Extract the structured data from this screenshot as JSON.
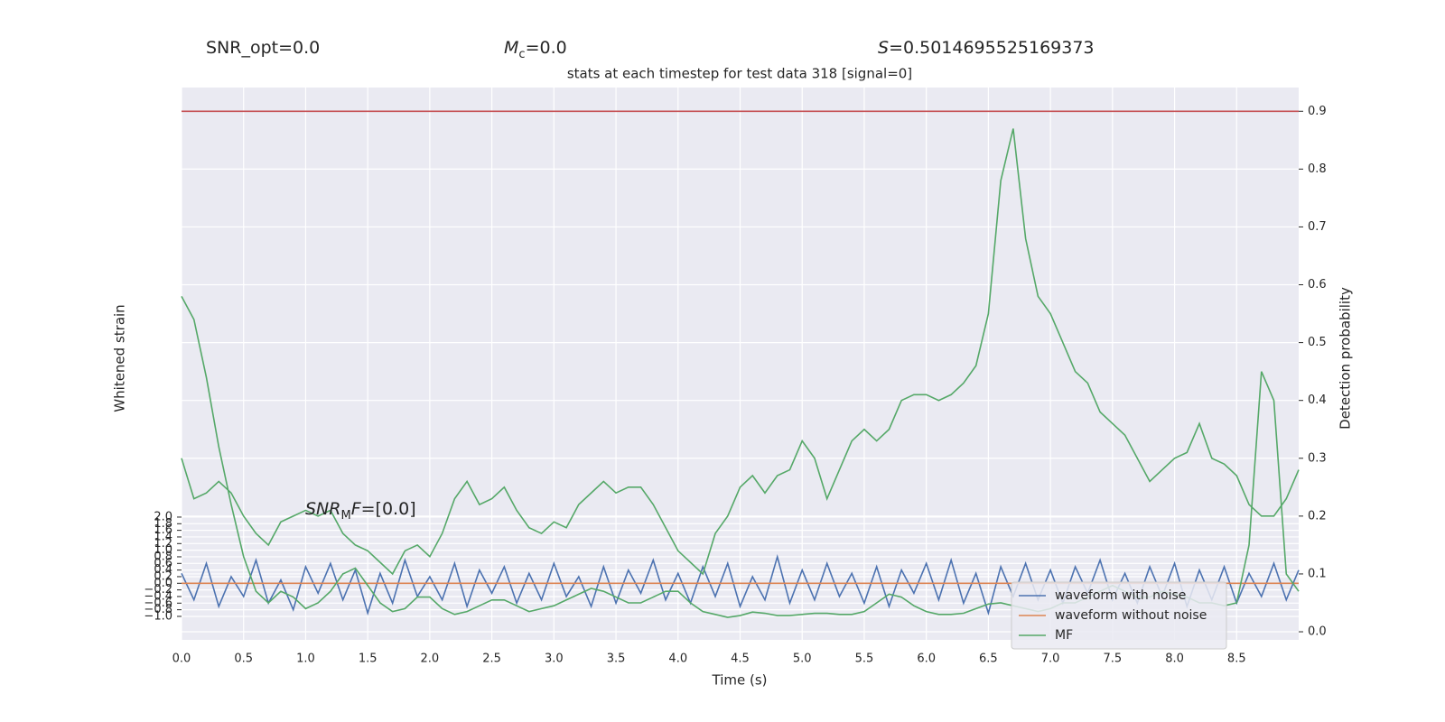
{
  "chart_data": {
    "type": "line",
    "title": "stats at each timestep for test data 318 [signal=0]",
    "stats": [
      {
        "text": "SNR_opt=0.0"
      },
      {
        "italic": "M",
        "sub": "c",
        "text": "=0.0"
      },
      {
        "italic": "S",
        "text": "=0.5014695525169373"
      }
    ],
    "annotation": {
      "italic": "SNR",
      "sub": "M",
      "italic2": "F",
      "text": "=[0.0]"
    },
    "xlabel": "Time (s)",
    "ylabel": "Whitened strain",
    "y2label": "Detection probability",
    "xlim": [
      0,
      9.0
    ],
    "xticks": [
      {
        "value": 0,
        "label": "0.0"
      },
      0.5,
      {
        "value": 1,
        "label": "1.0"
      },
      1.5,
      {
        "value": 2,
        "label": "2.0"
      },
      2.5,
      {
        "value": 3,
        "label": "3.0"
      },
      3.5,
      {
        "value": 4,
        "label": "4.0"
      },
      4.5,
      {
        "value": 5,
        "label": "5.0"
      },
      5.5,
      {
        "value": 6,
        "label": "6.0"
      },
      6.5,
      {
        "value": 7,
        "label": "7.0"
      },
      7.5,
      {
        "value": 8,
        "label": "8.0"
      },
      8.5
    ],
    "ylim": [
      -1.71,
      14.98
    ],
    "yticks": [
      {
        "value": -1,
        "label": "−1.0"
      },
      {
        "value": -0.8,
        "label": "−0.8"
      },
      {
        "value": -0.6,
        "label": "−0.6"
      },
      {
        "value": -0.4,
        "label": "−0.4"
      },
      {
        "value": -0.2,
        "label": "−0.2"
      },
      {
        "value": 0,
        "label": "0.0"
      },
      0.2,
      0.4,
      0.6,
      0.8,
      {
        "value": 1,
        "label": "1.0"
      },
      1.2,
      1.4,
      1.6,
      1.8,
      {
        "value": 2,
        "label": "2.0"
      }
    ],
    "y2lim": [
      -0.014,
      0.941
    ],
    "y2ticks": [
      {
        "value": 0,
        "label": "0.0"
      },
      0.1,
      0.2,
      0.3,
      0.4,
      0.5,
      0.6,
      0.7,
      0.8,
      0.9
    ],
    "grid": true,
    "legend": "lower right",
    "hlines": [
      {
        "value": 0.9,
        "color": "#c44e52",
        "axis": "y2"
      }
    ],
    "x": [
      0,
      0.1,
      0.2,
      0.3,
      0.4,
      0.5,
      0.6,
      0.7,
      0.8,
      0.9,
      1.0,
      1.1,
      1.2,
      1.3,
      1.4,
      1.5,
      1.6,
      1.7,
      1.8,
      1.9,
      2.0,
      2.1,
      2.2,
      2.3,
      2.4,
      2.5,
      2.6,
      2.7,
      2.8,
      2.9,
      3.0,
      3.1,
      3.2,
      3.3,
      3.4,
      3.5,
      3.6,
      3.7,
      3.8,
      3.9,
      4.0,
      4.1,
      4.2,
      4.3,
      4.4,
      4.5,
      4.6,
      4.7,
      4.8,
      4.9,
      5.0,
      5.1,
      5.2,
      5.3,
      5.4,
      5.5,
      5.6,
      5.7,
      5.8,
      5.9,
      6.0,
      6.1,
      6.2,
      6.3,
      6.4,
      6.5,
      6.6,
      6.7,
      6.8,
      6.9,
      7.0,
      7.1,
      7.2,
      7.3,
      7.4,
      7.5,
      7.6,
      7.7,
      7.8,
      7.9,
      8.0,
      8.1,
      8.2,
      8.3,
      8.4,
      8.5,
      8.6,
      8.7,
      8.8,
      8.9,
      9.0
    ],
    "series": [
      {
        "name": "waveform with noise",
        "color": "#4c72b0",
        "axis": "y",
        "values": [
          0.3,
          -0.5,
          0.6,
          -0.7,
          0.2,
          -0.4,
          0.7,
          -0.6,
          0.1,
          -0.8,
          0.5,
          -0.3,
          0.6,
          -0.5,
          0.4,
          -0.9,
          0.3,
          -0.6,
          0.7,
          -0.4,
          0.2,
          -0.5,
          0.6,
          -0.7,
          0.4,
          -0.3,
          0.5,
          -0.6,
          0.3,
          -0.5,
          0.6,
          -0.4,
          0.2,
          -0.7,
          0.5,
          -0.6,
          0.4,
          -0.3,
          0.7,
          -0.5,
          0.3,
          -0.6,
          0.5,
          -0.4,
          0.6,
          -0.7,
          0.2,
          -0.5,
          0.8,
          -0.6,
          0.4,
          -0.5,
          0.6,
          -0.4,
          0.3,
          -0.6,
          0.5,
          -0.7,
          0.4,
          -0.3,
          0.6,
          -0.5,
          0.7,
          -0.6,
          0.3,
          -0.9,
          0.5,
          -0.4,
          0.6,
          -0.5,
          0.4,
          -0.6,
          0.5,
          -0.3,
          0.7,
          -0.5,
          0.3,
          -0.6,
          0.5,
          -0.4,
          0.6,
          -0.7,
          0.4,
          -0.5,
          0.5,
          -0.6,
          0.3,
          -0.4,
          0.6,
          -0.5,
          0.4
        ]
      },
      {
        "name": "waveform without noise",
        "color": "#dd8452",
        "axis": "y",
        "x": [
          0,
          9.0
        ],
        "values": [
          0,
          0
        ]
      },
      {
        "name": "MF",
        "color": "#55a868",
        "axis": "y2",
        "values": [
          0.58,
          0.54,
          0.44,
          0.32,
          0.22,
          0.13,
          0.07,
          0.05,
          0.07,
          0.06,
          0.04,
          0.05,
          0.07,
          0.1,
          0.11,
          0.08,
          0.05,
          0.035,
          0.04,
          0.06,
          0.06,
          0.04,
          0.03,
          0.035,
          0.045,
          0.055,
          0.055,
          0.045,
          0.035,
          0.04,
          0.045,
          0.055,
          0.065,
          0.075,
          0.07,
          0.06,
          0.05,
          0.05,
          0.06,
          0.07,
          0.07,
          0.05,
          0.035,
          0.03,
          0.025,
          0.028,
          0.034,
          0.032,
          0.028,
          0.028,
          0.03,
          0.032,
          0.032,
          0.03,
          0.03,
          0.035,
          0.05,
          0.065,
          0.06,
          0.045,
          0.035,
          0.03,
          0.03,
          0.032,
          0.04,
          0.048,
          0.05,
          0.045,
          0.04,
          0.035,
          0.04,
          0.05,
          0.05,
          0.06,
          0.07,
          0.08,
          0.07,
          0.06,
          0.06,
          0.07,
          0.065,
          0.06,
          0.05,
          0.05,
          0.045,
          0.05,
          0.15,
          0.45,
          0.4,
          0.1,
          0.07
        ]
      },
      {
        "color": "#55a868",
        "axis": "y2",
        "values": [
          0.3,
          0.23,
          0.24,
          0.26,
          0.24,
          0.2,
          0.17,
          0.15,
          0.19,
          0.2,
          0.21,
          0.2,
          0.21,
          0.17,
          0.15,
          0.14,
          0.12,
          0.1,
          0.14,
          0.15,
          0.13,
          0.17,
          0.23,
          0.26,
          0.22,
          0.23,
          0.25,
          0.21,
          0.18,
          0.17,
          0.19,
          0.18,
          0.22,
          0.24,
          0.26,
          0.24,
          0.25,
          0.25,
          0.22,
          0.18,
          0.14,
          0.12,
          0.1,
          0.17,
          0.2,
          0.25,
          0.27,
          0.24,
          0.27,
          0.28,
          0.33,
          0.3,
          0.23,
          0.28,
          0.33,
          0.35,
          0.33,
          0.35,
          0.4,
          0.41,
          0.41,
          0.4,
          0.41,
          0.43,
          0.46,
          0.55,
          0.78,
          0.87,
          0.68,
          0.58,
          0.55,
          0.5,
          0.45,
          0.43,
          0.38,
          0.36,
          0.34,
          0.3,
          0.26,
          0.28,
          0.3,
          0.31,
          0.36,
          0.3,
          0.29,
          0.27,
          0.22,
          0.2,
          0.2,
          0.23,
          0.28
        ]
      }
    ]
  }
}
